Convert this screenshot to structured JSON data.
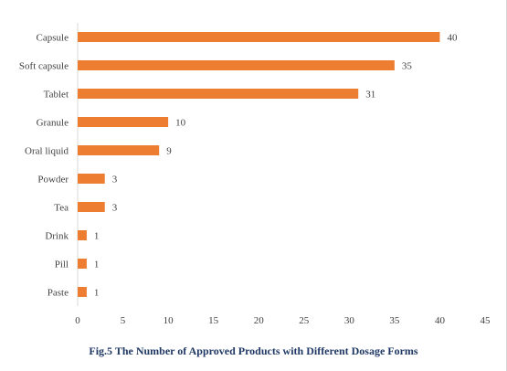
{
  "chart_data": {
    "type": "bar",
    "orientation": "horizontal",
    "categories": [
      "Capsule",
      "Soft capsule",
      "Tablet",
      "Granule",
      "Oral liquid",
      "Powder",
      "Tea",
      "Drink",
      "Pill",
      "Paste"
    ],
    "values": [
      40,
      35,
      31,
      10,
      9,
      3,
      3,
      1,
      1,
      1
    ],
    "xlim": [
      0,
      45
    ],
    "xticks": [
      0,
      5,
      10,
      15,
      20,
      25,
      30,
      35,
      40,
      45
    ],
    "grid": false,
    "legend": false,
    "bar_color": "#ed7d31",
    "title": "Fig.5 The Number of Approved Products with Different Dosage Forms"
  }
}
